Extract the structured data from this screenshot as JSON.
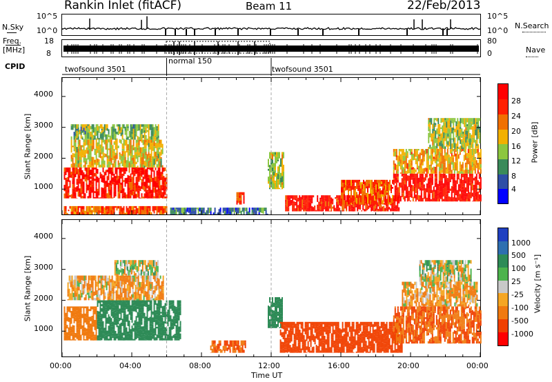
{
  "header": {
    "title": "Rankin Inlet (fitACF)",
    "beam": "Beam 11",
    "date": "22/Feb/2013"
  },
  "top_panel": {
    "left_label": "N.Sky",
    "right_label": "N.Search",
    "left_ticks": [
      "10^5",
      "10^0"
    ],
    "right_ticks": [
      "10^5",
      "10^0"
    ]
  },
  "freq_panel": {
    "left_label_1": "Freq.",
    "left_label_2": "[MHz]",
    "right_label": "Nave",
    "left_ticks": [
      "18",
      "8"
    ],
    "right_ticks": [
      "80",
      "0"
    ]
  },
  "cpid": {
    "label": "CPID",
    "segments": [
      {
        "name": "twofsound 3501",
        "start_hour": 0,
        "end_hour": 6
      },
      {
        "name": "normal 150",
        "start_hour": 6,
        "end_hour": 12
      },
      {
        "name": "twofsound 3501",
        "start_hour": 12,
        "end_hour": 24
      }
    ]
  },
  "colors": {
    "power": [
      "#0000ff",
      "#2e4ea6",
      "#3a8a5a",
      "#8cc63f",
      "#f2b000",
      "#f07000",
      "#ff2000",
      "#ff0000"
    ],
    "velocity": [
      "#ff0000",
      "#f04000",
      "#f07a10",
      "#f5a623",
      "#c8c8c8",
      "#4db34d",
      "#2e8b57",
      "#2e6fb0",
      "#2040c0"
    ]
  },
  "chart_data": [
    {
      "type": "heatmap",
      "quantity": "Power",
      "xlabel": "",
      "ylabel": "Slant Range [km]",
      "xlim": [
        0,
        24
      ],
      "ylim": [
        180,
        4600
      ],
      "yticks": [
        "1000",
        "2000",
        "3000",
        "4000"
      ],
      "colorbar": {
        "label": "Power [dB]",
        "ticks": [
          "4",
          "8",
          "12",
          "16",
          "20",
          "24",
          "28"
        ],
        "range": [
          0,
          30
        ]
      },
      "regions": [
        {
          "x0": 0.1,
          "x1": 6.0,
          "y0": 700,
          "y1": 1700,
          "value": 26
        },
        {
          "x0": 0.1,
          "x1": 6.0,
          "y0": 180,
          "y1": 450,
          "value": 22
        },
        {
          "x0": 0.5,
          "x1": 5.8,
          "y0": 1700,
          "y1": 2600,
          "value": 16
        },
        {
          "x0": 0.5,
          "x1": 5.5,
          "y0": 2600,
          "y1": 3100,
          "value": 12
        },
        {
          "x0": 6.2,
          "x1": 11.8,
          "y0": 180,
          "y1": 400,
          "value": 8
        },
        {
          "x0": 10.0,
          "x1": 10.4,
          "y0": 500,
          "y1": 900,
          "value": 24
        },
        {
          "x0": 11.8,
          "x1": 12.7,
          "y0": 1000,
          "y1": 2200,
          "value": 14
        },
        {
          "x0": 12.8,
          "x1": 19.3,
          "y0": 280,
          "y1": 800,
          "value": 26
        },
        {
          "x0": 16.0,
          "x1": 19.0,
          "y0": 500,
          "y1": 1300,
          "value": 22
        },
        {
          "x0": 19.0,
          "x1": 24.0,
          "y0": 600,
          "y1": 1500,
          "value": 27
        },
        {
          "x0": 19.0,
          "x1": 24.0,
          "y0": 1500,
          "y1": 2300,
          "value": 18
        },
        {
          "x0": 21.0,
          "x1": 24.0,
          "y0": 2300,
          "y1": 3300,
          "value": 14
        }
      ]
    },
    {
      "type": "heatmap",
      "quantity": "Velocity",
      "xlabel": "Time UT",
      "ylabel": "Slant Range [km]",
      "xlim": [
        0,
        24
      ],
      "ylim": [
        180,
        4600
      ],
      "xticks": [
        "00:00",
        "04:00",
        "08:00",
        "12:00",
        "16:00",
        "20:00",
        "00:00"
      ],
      "yticks": [
        "1000",
        "2000",
        "3000",
        "4000"
      ],
      "colorbar": {
        "label": "Velocity [m s⁻¹]",
        "ticks": [
          "1000",
          "500",
          "100",
          "25",
          "-25",
          "-100",
          "-500",
          "-1000"
        ]
      },
      "regions": [
        {
          "x0": 0.1,
          "x1": 2.0,
          "y0": 700,
          "y1": 1800,
          "value": -300
        },
        {
          "x0": 2.0,
          "x1": 6.8,
          "y0": 700,
          "y1": 2000,
          "value": 300
        },
        {
          "x0": 0.3,
          "x1": 5.8,
          "y0": 2000,
          "y1": 2800,
          "value": -100
        },
        {
          "x0": 3.0,
          "x1": 5.5,
          "y0": 2800,
          "y1": 3300,
          "value": 0
        },
        {
          "x0": 8.5,
          "x1": 10.5,
          "y0": 300,
          "y1": 700,
          "value": -500
        },
        {
          "x0": 11.8,
          "x1": 12.6,
          "y0": 1100,
          "y1": 2100,
          "value": 300
        },
        {
          "x0": 12.5,
          "x1": 19.5,
          "y0": 300,
          "y1": 1300,
          "value": -700
        },
        {
          "x0": 19.0,
          "x1": 24.0,
          "y0": 600,
          "y1": 1800,
          "value": -500
        },
        {
          "x0": 19.5,
          "x1": 23.8,
          "y0": 1800,
          "y1": 2600,
          "value": -100
        },
        {
          "x0": 20.5,
          "x1": 23.5,
          "y0": 2600,
          "y1": 3300,
          "value": 0
        }
      ]
    }
  ]
}
